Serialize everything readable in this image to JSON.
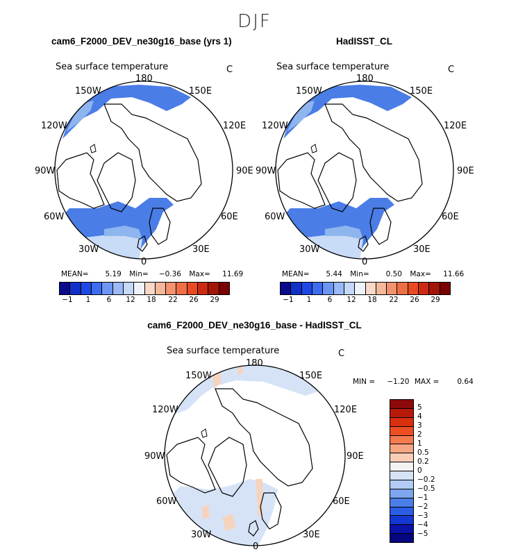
{
  "title": "DJF",
  "colors": {
    "ocean_light": "#c8dbf7",
    "ocean_mid": "#8fb5ef",
    "ocean_blue": "#4a7de6",
    "ocean_deep": "#2860e0",
    "diff_pos": "#f5d4bf",
    "land": "#ffffff",
    "line": "#000000"
  },
  "panels": [
    {
      "title": "cam6_F2000_DEV_ne30g16_base (yrs 1)",
      "field": "Sea surface temperature",
      "unit": "C",
      "lon_labels": {
        "n": "180",
        "nw": "150W",
        "ne": "150E",
        "wnw": "120W",
        "ene": "120E",
        "w": "90W",
        "e": "90E",
        "wsw": "60W",
        "ese": "60E",
        "sw": "30W",
        "se": "30E",
        "s": "0"
      },
      "stats": {
        "mean_label": "MEAN=",
        "mean": "5.19",
        "min_label": "Min=",
        "min": "−0.36",
        "max_label": "Max=",
        "max": "11.69"
      }
    },
    {
      "title": "HadISST_CL",
      "field": "Sea surface temperature",
      "unit": "C",
      "lon_labels": {
        "n": "180",
        "nw": "150W",
        "ne": "150E",
        "wnw": "120W",
        "ene": "120E",
        "w": "90W",
        "e": "90E",
        "wsw": "60W",
        "ese": "60E",
        "sw": "30W",
        "se": "30E",
        "s": "0"
      },
      "stats": {
        "mean_label": "MEAN=",
        "mean": "5.44",
        "min_label": "Min=",
        "min": "0.50",
        "max_label": "Max=",
        "max": "11.66"
      }
    },
    {
      "title": "cam6_F2000_DEV_ne30g16_base - HadISST_CL",
      "field": "Sea surface temperature",
      "unit": "C",
      "lon_labels": {
        "n": "180",
        "nw": "150W",
        "ne": "150E",
        "wnw": "120W",
        "ene": "120E",
        "w": "90W",
        "e": "90E",
        "wsw": "60W",
        "ese": "60E",
        "sw": "30W",
        "se": "30E",
        "s": "0"
      },
      "stats": {
        "min_label": "MIN =",
        "min": "−1.20",
        "max_label": "MAX =",
        "max": "0.64"
      }
    }
  ],
  "colorbar_abs": {
    "labels": [
      "−1",
      "1",
      "6",
      "12",
      "18",
      "22",
      "26",
      "29"
    ],
    "colors": [
      "#0a0a8c",
      "#1030c8",
      "#1e48e6",
      "#3c6cf0",
      "#6d95f2",
      "#9ab9f5",
      "#c5d8f8",
      "#eef3fb",
      "#f8d8c8",
      "#f5b89a",
      "#f2926e",
      "#ee6e46",
      "#e84b22",
      "#cc2a12",
      "#a31508",
      "#7a0202"
    ]
  },
  "colorbar_diff": {
    "labels": [
      "5",
      "4",
      "3",
      "2",
      "1",
      "0.5",
      "0.2",
      "0",
      "−0.2",
      "−0.5",
      "−1",
      "−2",
      "−3",
      "−4",
      "−5"
    ],
    "colors": [
      "#8c0a0a",
      "#b81a0a",
      "#d8300e",
      "#ec5022",
      "#f47a50",
      "#f6a582",
      "#f8cdb5",
      "#f3f3f3",
      "#d6e3f7",
      "#b3ccf4",
      "#7ea6ee",
      "#4c7ee8",
      "#2a5ee4",
      "#1438d4",
      "#0a12a8",
      "#060680"
    ]
  }
}
